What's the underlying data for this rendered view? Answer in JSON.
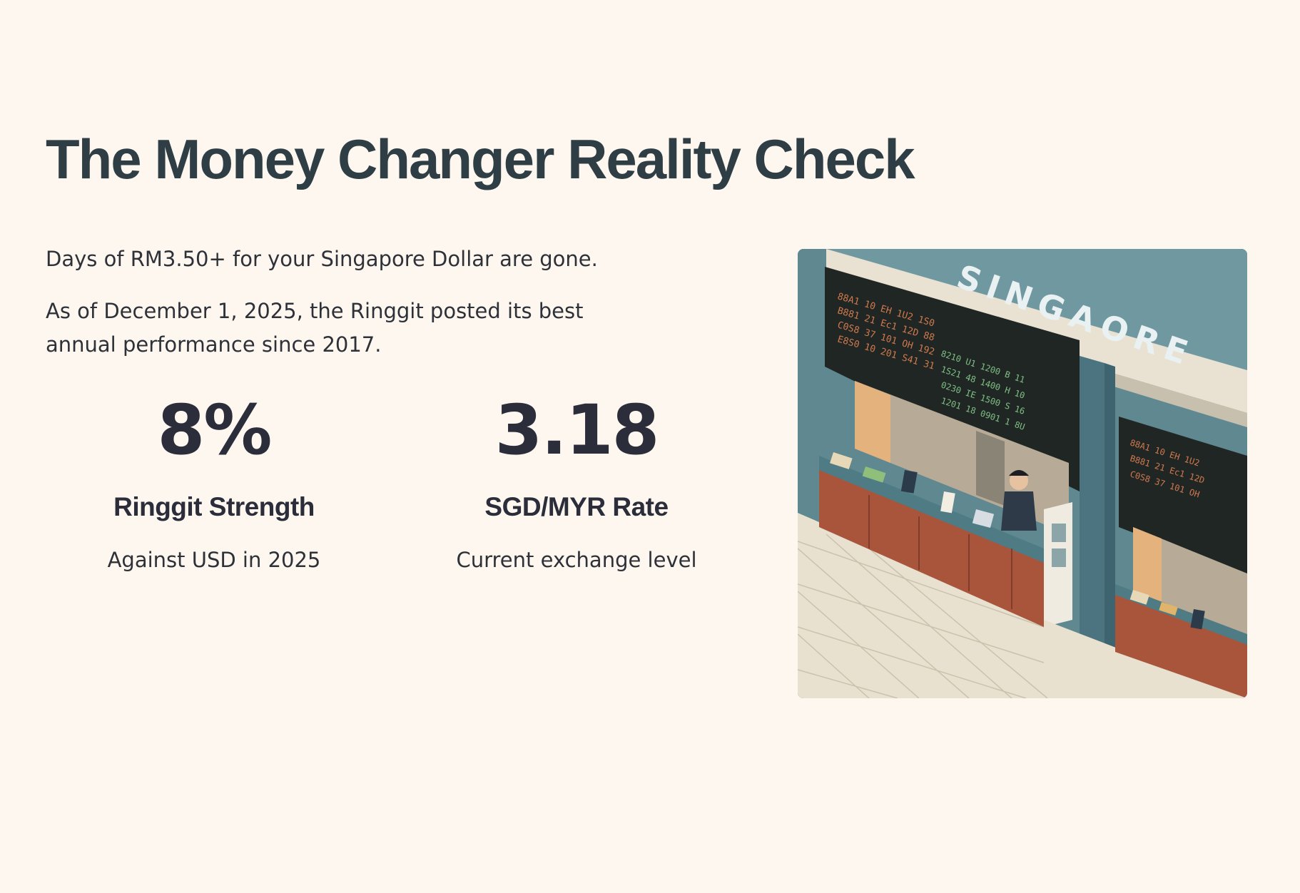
{
  "page": {
    "title": "The Money Changer Reality Check",
    "intro": "Days of RM3.50+ for your Singapore Dollar are gone.",
    "context": "As of December 1, 2025, the Ringgit posted its best annual performance since 2017."
  },
  "stats": [
    {
      "value": "8%",
      "label": "Ringgit Strength",
      "sub": "Against USD in 2025"
    },
    {
      "value": "3.18",
      "label": "SGD/MYR Rate",
      "sub": "Current exchange level"
    }
  ],
  "illustration": {
    "sign_text": "SINGAORE",
    "colors": {
      "wall": "#5f8891",
      "counter": "#a9553b",
      "floor": "#e8e1cf",
      "board": "#1f2624"
    }
  }
}
